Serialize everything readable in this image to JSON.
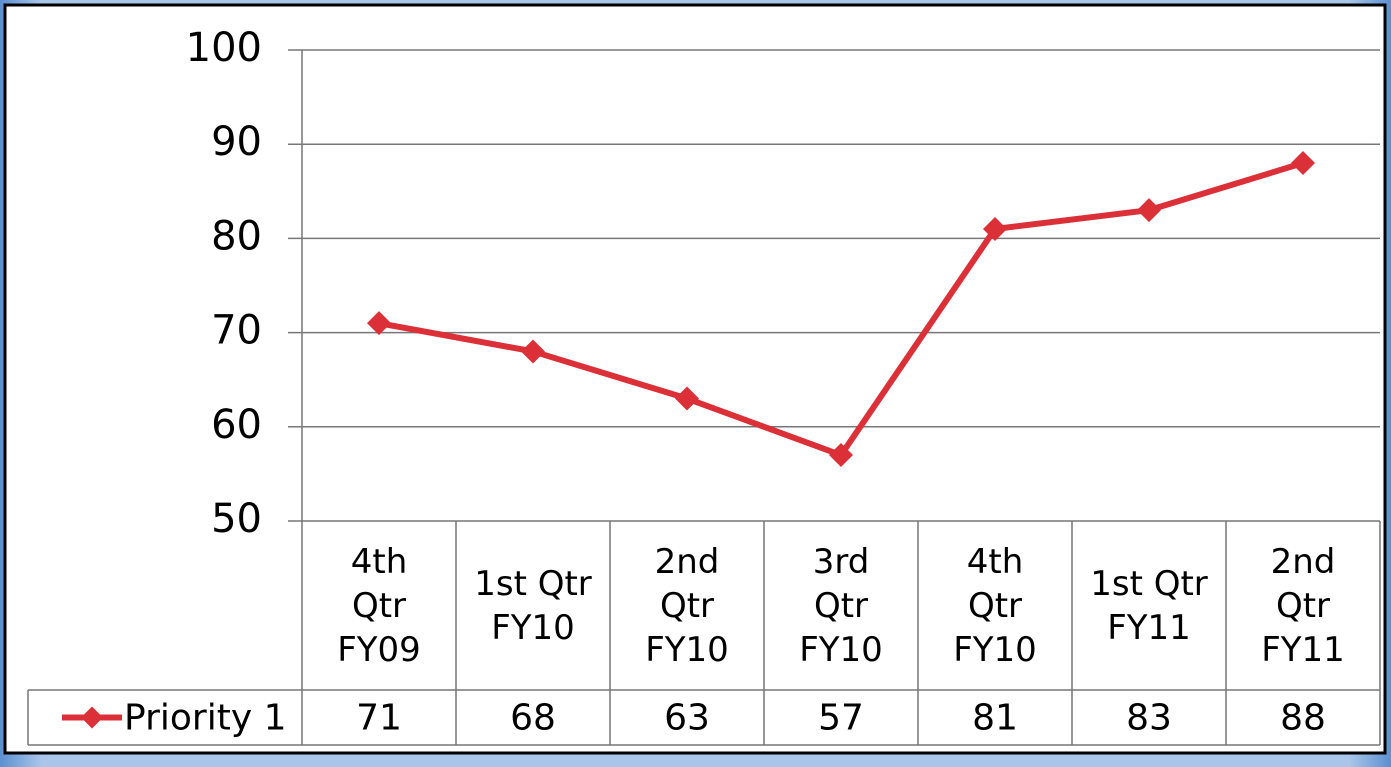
{
  "chart_data": {
    "type": "line",
    "categories": [
      "4th\nQtr\nFY09",
      "1st Qtr\nFY10",
      "2nd\nQtr\nFY10",
      "3rd\nQtr\nFY10",
      "4th\nQtr\nFY10",
      "1st Qtr\nFY11",
      "2nd\nQtr\nFY11"
    ],
    "series": [
      {
        "name": "Priority 1",
        "color": "#dc3038",
        "values": [
          71,
          68,
          63,
          57,
          81,
          83,
          88
        ]
      }
    ],
    "ylim": [
      50,
      100
    ],
    "yticks": [
      50,
      60,
      70,
      80,
      90,
      100
    ],
    "grid": true
  }
}
